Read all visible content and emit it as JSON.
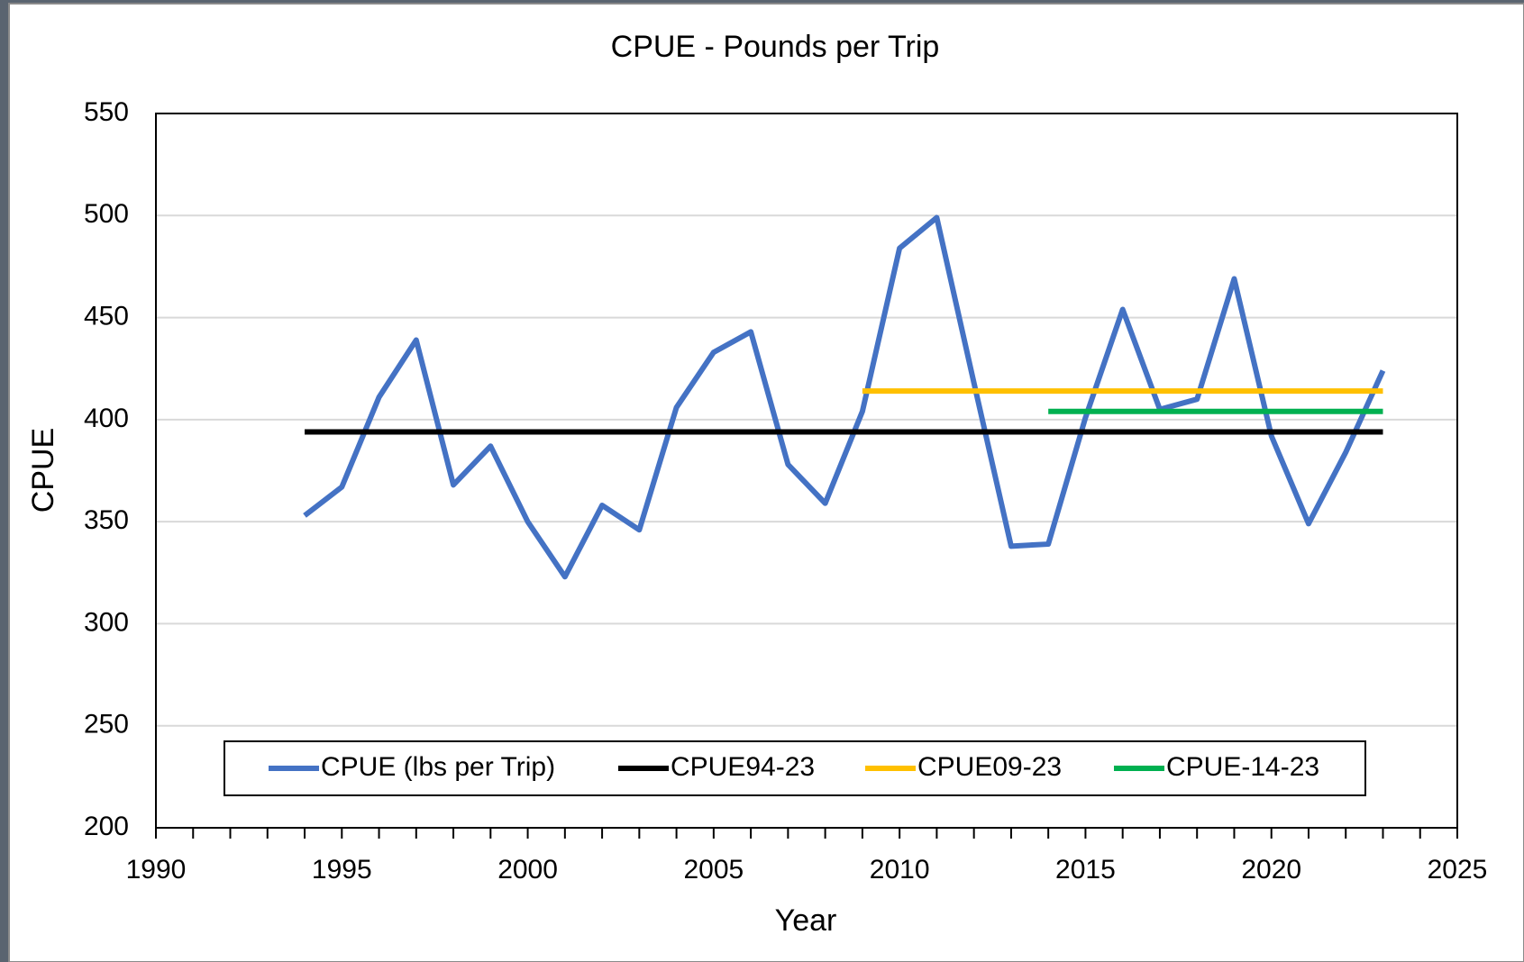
{
  "chart_data": {
    "type": "line",
    "title": "CPUE - Pounds per Trip",
    "x_label": "Year",
    "y_label": "CPUE",
    "x": [
      1994,
      1995,
      1996,
      1997,
      1998,
      1999,
      2000,
      2001,
      2002,
      2003,
      2004,
      2005,
      2006,
      2007,
      2008,
      2009,
      2010,
      2011,
      2012,
      2013,
      2014,
      2015,
      2016,
      2017,
      2018,
      2019,
      2020,
      2021,
      2022,
      2023
    ],
    "series": [
      {
        "name": "CPUE (lbs per Trip)",
        "color": "#4472c4",
        "values": [
          353,
          367,
          411,
          439,
          368,
          387,
          350,
          323,
          358,
          346,
          406,
          433,
          443,
          378,
          359,
          404,
          484,
          499,
          418,
          338,
          339,
          401,
          454,
          405,
          410,
          469,
          392,
          349,
          384,
          424
        ]
      },
      {
        "name": "CPUE94-23",
        "color": "#000000",
        "values": [
          394,
          394,
          394,
          394,
          394,
          394,
          394,
          394,
          394,
          394,
          394,
          394,
          394,
          394,
          394,
          394,
          394,
          394,
          394,
          394,
          394,
          394,
          394,
          394,
          394,
          394,
          394,
          394,
          394,
          394
        ]
      },
      {
        "name": "CPUE09-23",
        "color": "#ffc000",
        "values": [
          null,
          null,
          null,
          null,
          null,
          null,
          null,
          null,
          null,
          null,
          null,
          null,
          null,
          null,
          null,
          414,
          414,
          414,
          414,
          414,
          414,
          414,
          414,
          414,
          414,
          414,
          414,
          414,
          414,
          414
        ]
      },
      {
        "name": "CPUE-14-23",
        "color": "#00b050",
        "values": [
          null,
          null,
          null,
          null,
          null,
          null,
          null,
          null,
          null,
          null,
          null,
          null,
          null,
          null,
          null,
          null,
          null,
          null,
          null,
          null,
          404,
          404,
          404,
          404,
          404,
          404,
          404,
          404,
          404,
          404
        ]
      }
    ],
    "xlim": [
      1990,
      2025
    ],
    "xticks": [
      1990,
      1995,
      2000,
      2005,
      2010,
      2015,
      2020,
      2025
    ],
    "xminorticks": [
      1991,
      1992,
      1993,
      1994,
      1996,
      1997,
      1998,
      1999,
      2001,
      2002,
      2003,
      2004,
      2006,
      2007,
      2008,
      2009,
      2011,
      2012,
      2013,
      2014,
      2016,
      2017,
      2018,
      2019,
      2021,
      2022,
      2023,
      2024
    ],
    "ylim": [
      200,
      550
    ],
    "yticks": [
      200,
      250,
      300,
      350,
      400,
      450,
      500,
      550
    ],
    "grid": true,
    "legend": "lower center"
  }
}
